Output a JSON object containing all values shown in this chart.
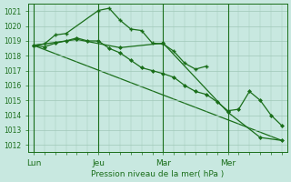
{
  "background_color": "#c8e8e0",
  "grid_color": "#a0c8b8",
  "line_color": "#1a6e1a",
  "marker_color": "#1a6e1a",
  "xlabel_text": "Pression niveau de la mer( hPa )",
  "ylim": [
    1011.5,
    1021.5
  ],
  "yticks": [
    1012,
    1013,
    1014,
    1015,
    1016,
    1017,
    1018,
    1019,
    1020,
    1021
  ],
  "xtick_labels": [
    "Lun",
    "Jeu",
    "Mar",
    "Mer"
  ],
  "xtick_positions": [
    0,
    6,
    12,
    18
  ],
  "xlim": [
    -0.5,
    23.5
  ],
  "series_plus": {
    "x": [
      0,
      1,
      2,
      3,
      6,
      7,
      8,
      9,
      10,
      11,
      12,
      13,
      14,
      15,
      16
    ],
    "y": [
      1018.7,
      1018.8,
      1019.4,
      1019.5,
      1021.05,
      1021.2,
      1020.4,
      1019.8,
      1019.7,
      1018.85,
      1018.8,
      1018.3,
      1017.5,
      1017.1,
      1017.3
    ]
  },
  "series_main": {
    "x": [
      0,
      1,
      2,
      3,
      4,
      5,
      6,
      7,
      8,
      9,
      10,
      11,
      12,
      13,
      14,
      15,
      16,
      17,
      18,
      19,
      20,
      21,
      22,
      23
    ],
    "y": [
      1018.7,
      1018.6,
      1018.85,
      1019.0,
      1019.2,
      1019.0,
      1019.0,
      1018.5,
      1018.2,
      1017.7,
      1017.2,
      1017.0,
      1016.8,
      1016.55,
      1016.0,
      1015.6,
      1015.4,
      1014.9,
      1014.3,
      1014.4,
      1015.6,
      1015.0,
      1014.0,
      1013.3
    ]
  },
  "series_sparse": {
    "x": [
      0,
      4,
      8,
      12,
      18,
      21,
      23
    ],
    "y": [
      1018.7,
      1019.1,
      1018.55,
      1018.85,
      1014.2,
      1012.5,
      1012.3
    ]
  },
  "series_trend": {
    "x": [
      0,
      23
    ],
    "y": [
      1018.7,
      1012.3
    ]
  }
}
